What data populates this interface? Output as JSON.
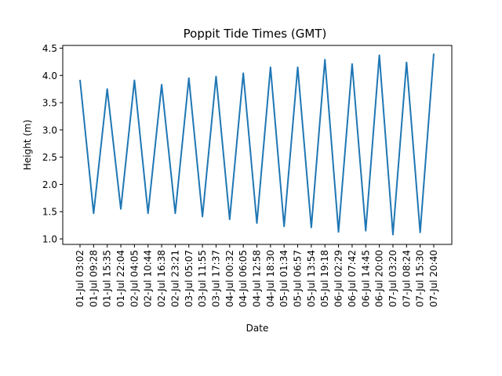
{
  "chart_data": {
    "type": "line",
    "title": "Poppit Tide Times (GMT)",
    "xlabel": "Date",
    "ylabel": "Height (m)",
    "categories": [
      "01-Jul 03:02",
      "01-Jul 09:28",
      "01-Jul 15:35",
      "01-Jul 22:04",
      "02-Jul 04:05",
      "02-Jul 10:44",
      "02-Jul 16:38",
      "02-Jul 23:21",
      "03-Jul 05:07",
      "03-Jul 11:55",
      "03-Jul 17:37",
      "04-Jul 00:32",
      "04-Jul 06:05",
      "04-Jul 12:58",
      "04-Jul 18:30",
      "05-Jul 01:34",
      "05-Jul 06:57",
      "05-Jul 13:54",
      "05-Jul 19:18",
      "06-Jul 02:29",
      "06-Jul 07:42",
      "06-Jul 14:45",
      "06-Jul 20:00",
      "07-Jul 03:20",
      "07-Jul 08:24",
      "07-Jul 15:30",
      "07-Jul 20:40"
    ],
    "values": [
      3.92,
      1.47,
      3.75,
      1.55,
      3.91,
      1.47,
      3.83,
      1.47,
      3.95,
      1.41,
      3.98,
      1.36,
      4.04,
      1.29,
      4.15,
      1.23,
      4.15,
      1.21,
      4.29,
      1.13,
      4.21,
      1.15,
      4.37,
      1.08,
      4.24,
      1.12,
      4.4
    ],
    "ylim": [
      0.9,
      4.55
    ],
    "yticks": [
      "1.0",
      "1.5",
      "2.0",
      "2.5",
      "3.0",
      "3.5",
      "4.0",
      "4.5"
    ],
    "line_color": "#1f77b4",
    "grid": false
  }
}
